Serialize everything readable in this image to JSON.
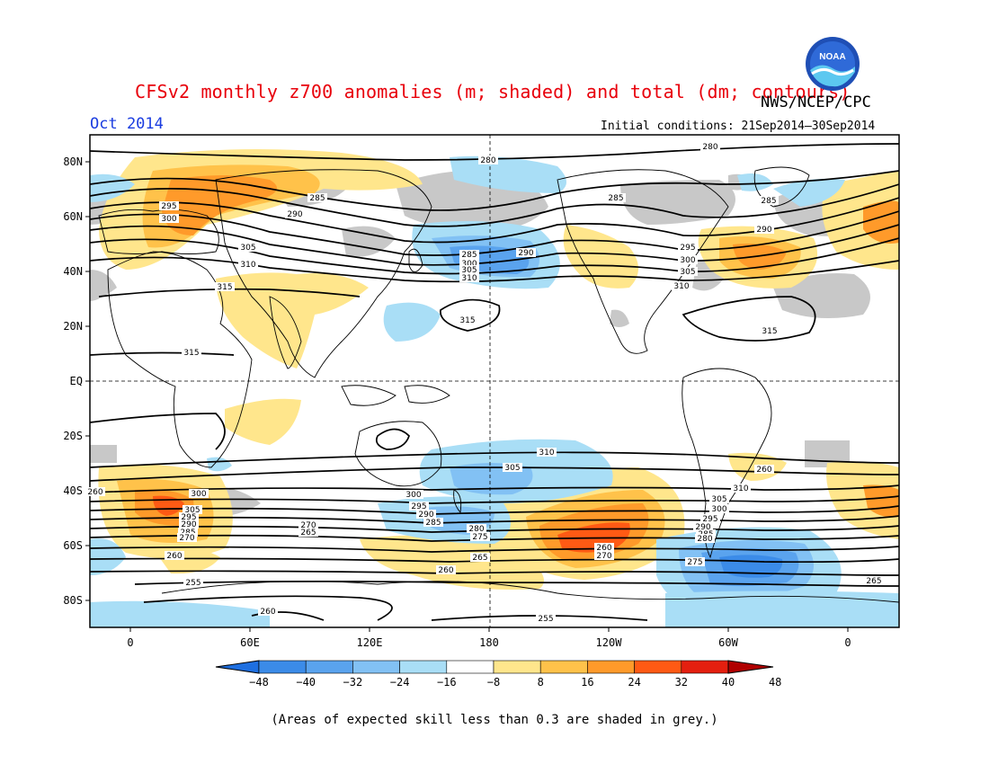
{
  "header": {
    "title": "CFSv2 monthly z700 anomalies (m; shaded) and total (dm; contours)",
    "agency": "NWS/NCEP/CPC",
    "month": "Oct 2014",
    "initial_conditions": "Initial conditions: 21Sep2014–30Sep2014",
    "logo_text": "NOAA"
  },
  "map": {
    "lat_labels": [
      "80N",
      "60N",
      "40N",
      "20N",
      "EQ",
      "20S",
      "40S",
      "60S",
      "80S"
    ],
    "lon_labels": [
      "0",
      "60E",
      "120E",
      "180",
      "120W",
      "60W",
      "0"
    ],
    "contour_labels": [
      "280",
      "280",
      "285",
      "290",
      "295",
      "300",
      "305",
      "310",
      "315",
      "315",
      "315",
      "285",
      "285",
      "290",
      "295",
      "300",
      "305",
      "310",
      "290",
      "285",
      "300",
      "305",
      "310",
      "315",
      "310",
      "305",
      "300",
      "295",
      "290",
      "285",
      "280",
      "275",
      "270",
      "265",
      "260",
      "260",
      "255",
      "255",
      "260",
      "270",
      "265",
      "260",
      "310",
      "305",
      "300",
      "295",
      "290",
      "285",
      "280",
      "275",
      "260",
      "300",
      "305",
      "295",
      "290",
      "285",
      "270",
      "265",
      "260",
      "285"
    ],
    "ocean_color": "#ffffff",
    "skill_grey": "#c0c0c0"
  },
  "colorbar": {
    "labels": [
      "-48",
      "-40",
      "-32",
      "-24",
      "-16",
      "-8",
      "8",
      "16",
      "24",
      "32",
      "40",
      "48"
    ],
    "colors": [
      "#1e6fe0",
      "#3b8be8",
      "#5aa3ee",
      "#82c1f4",
      "#a9def6",
      "#ffffff",
      "#ffe68c",
      "#ffc24a",
      "#ff9a2a",
      "#ff5a14",
      "#e41f0f",
      "#b00000"
    ]
  },
  "footnote": "(Areas of expected skill less than 0.3 are shaded in grey.)"
}
